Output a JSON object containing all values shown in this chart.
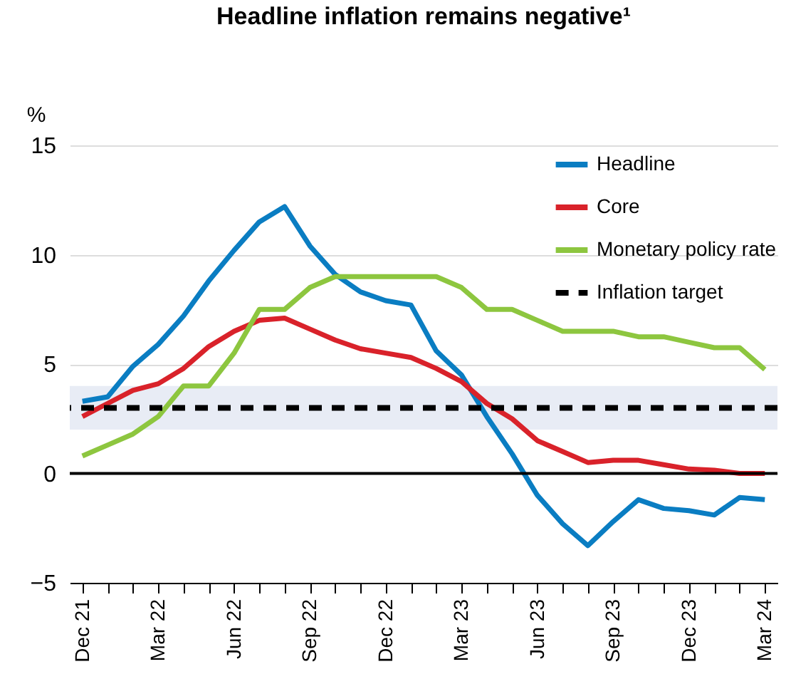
{
  "chart_data": {
    "type": "line",
    "title": "Headline inflation remains negative¹",
    "ylabel": "%",
    "categories": [
      "Dec 21",
      null,
      null,
      "Mar 22",
      null,
      null,
      "Jun 22",
      null,
      null,
      "Sep 22",
      null,
      null,
      "Dec 22",
      null,
      null,
      "Mar 23",
      null,
      null,
      "Jun 23",
      null,
      null,
      "Sep 23",
      null,
      null,
      "Dec 23",
      null,
      null,
      "Mar 24"
    ],
    "series": [
      {
        "name": "Headline",
        "color": "#0a7dc2",
        "values": [
          3.3,
          3.5,
          4.9,
          5.9,
          7.2,
          8.8,
          10.2,
          11.5,
          12.2,
          10.4,
          9.1,
          8.3,
          7.9,
          7.7,
          5.6,
          4.5,
          2.6,
          0.9,
          -1.0,
          -2.3,
          -3.3,
          -2.2,
          -1.2,
          -1.6,
          -1.7,
          -1.9,
          -1.1,
          -1.2
        ]
      },
      {
        "name": "Core",
        "color": "#d9222a",
        "values": [
          2.6,
          3.2,
          3.8,
          4.1,
          4.8,
          5.8,
          6.5,
          7.0,
          7.1,
          6.6,
          6.1,
          5.7,
          5.5,
          5.3,
          4.8,
          4.2,
          3.2,
          2.5,
          1.5,
          1.0,
          0.5,
          0.6,
          0.6,
          0.4,
          0.2,
          0.15,
          0.0,
          0.0
        ]
      },
      {
        "name": "Monetary policy rate",
        "color": "#8dc63f",
        "values": [
          0.8,
          1.3,
          1.8,
          2.6,
          4.0,
          4.0,
          5.5,
          7.5,
          7.5,
          8.5,
          9.0,
          9.0,
          9.0,
          9.0,
          9.0,
          8.5,
          7.5,
          7.5,
          7.0,
          6.5,
          6.5,
          6.5,
          6.25,
          6.25,
          6.0,
          5.75,
          5.75,
          4.75
        ]
      }
    ],
    "ylim": [
      -5,
      15
    ],
    "yticks": [
      -5,
      0,
      5,
      10,
      15
    ],
    "grid": "y",
    "legend": "top right",
    "line_style": "solid",
    "marker": "none",
    "ref_lines": [
      {
        "axis": "y",
        "value": 3,
        "label": "Inflation target",
        "color": "#000000",
        "line_style": "dashed"
      },
      {
        "axis": "y",
        "value": 0,
        "color": "#000000"
      }
    ],
    "bands": [
      {
        "axis": "y",
        "from": 2,
        "to": 4,
        "color": "#e8ecf5"
      }
    ]
  }
}
